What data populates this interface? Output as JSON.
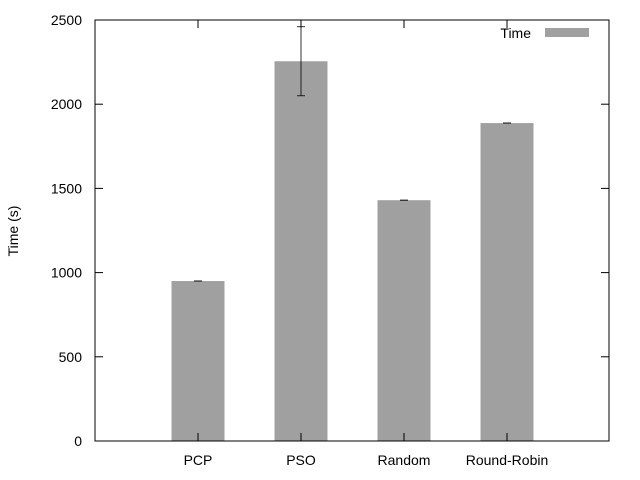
{
  "chart_data": {
    "type": "bar",
    "categories": [
      "PCP",
      "PSO",
      "Random",
      "Round-Robin"
    ],
    "series": [
      {
        "name": "Time",
        "values": [
          950,
          2255,
          1430,
          1888
        ],
        "error": [
          0,
          205,
          0,
          0
        ]
      }
    ],
    "ylabel": "Time (s)",
    "xlabel": "",
    "ylim": [
      0,
      2500
    ],
    "yticks": [
      0,
      500,
      1000,
      1500,
      2000,
      2500
    ],
    "grid": false,
    "legend_position": "top-right",
    "bar_color": "#a0a0a0"
  }
}
